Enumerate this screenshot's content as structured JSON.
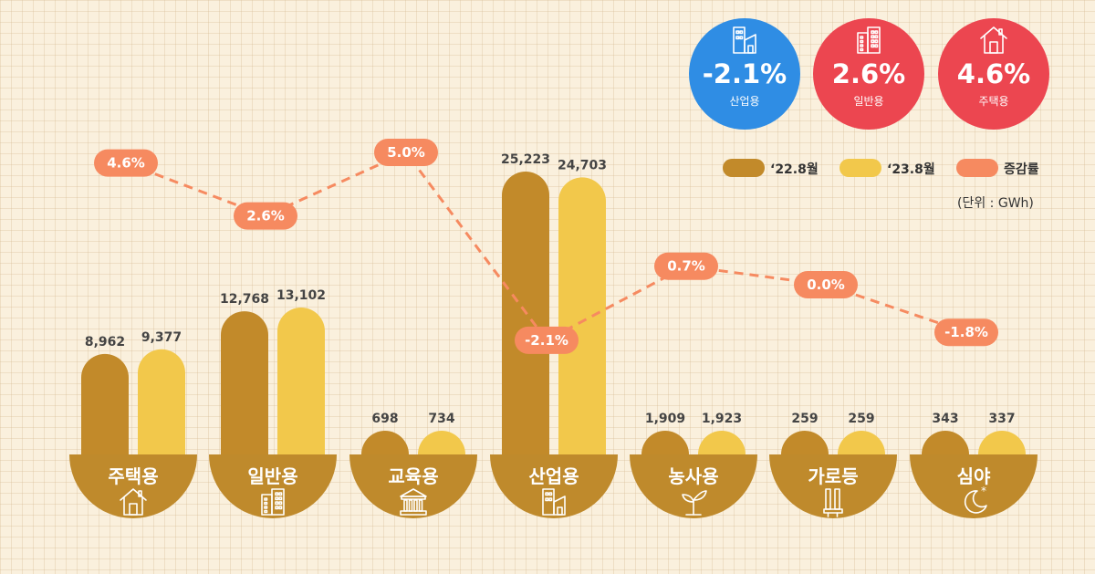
{
  "kpis": [
    {
      "value": "-2.1%",
      "label": "산업용",
      "color": "#2f8de4",
      "icon": "factory-icon"
    },
    {
      "value": "2.6%",
      "label": "일반용",
      "color": "#ec4650",
      "icon": "building-icon"
    },
    {
      "value": "4.6%",
      "label": "주택용",
      "color": "#ec4650",
      "icon": "house-icon"
    }
  ],
  "legend": {
    "items": [
      {
        "label": "‘22.8월",
        "color": "#c28a2a"
      },
      {
        "label": "‘23.8월",
        "color": "#f2c84b"
      },
      {
        "label": "증감률",
        "color": "#f68a60"
      }
    ],
    "unit": "(단위 : GWh)"
  },
  "chart_data": {
    "type": "bar",
    "categories": [
      "주택용",
      "일반용",
      "교육용",
      "산업용",
      "농사용",
      "가로등",
      "심야"
    ],
    "category_icons": [
      "house-icon",
      "building-icon",
      "school-icon",
      "factory-icon",
      "sprout-icon",
      "streetlight-icon",
      "moon-icon"
    ],
    "series": [
      {
        "name": "‘22.8월",
        "values": [
          8962,
          12768,
          698,
          25223,
          1909,
          259,
          343
        ],
        "labels": [
          "8,962",
          "12,768",
          "698",
          "25,223",
          "1,909",
          "259",
          "343"
        ],
        "color": "#c28a2a"
      },
      {
        "name": "‘23.8월",
        "values": [
          9377,
          13102,
          734,
          24703,
          1923,
          259,
          337
        ],
        "labels": [
          "9,377",
          "13,102",
          "734",
          "24,703",
          "1,923",
          "259",
          "337"
        ],
        "color": "#f2c84b"
      }
    ],
    "change_rate": {
      "name": "증감률",
      "values": [
        4.6,
        2.6,
        5.0,
        -2.1,
        0.7,
        0.0,
        -1.8
      ],
      "labels": [
        "4.6%",
        "2.6%",
        "5.0%",
        "-2.1%",
        "0.7%",
        "0.0%",
        "-1.8%"
      ],
      "color": "#f68a60"
    }
  }
}
